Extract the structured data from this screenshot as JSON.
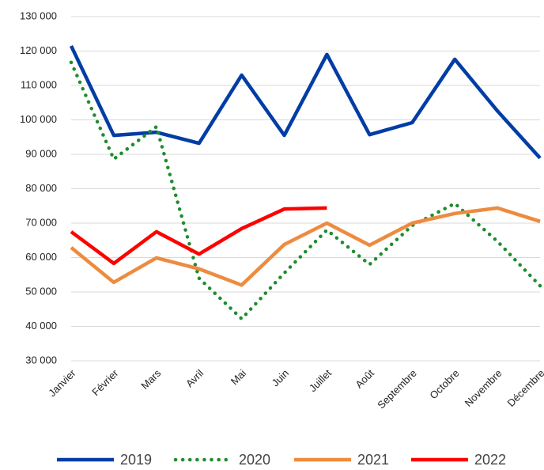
{
  "chart_data": {
    "type": "line",
    "categories": [
      "Janvier",
      "Février",
      "Mars",
      "Avril",
      "Mai",
      "Juin",
      "Juillet",
      "Août",
      "Septembre",
      "Octobre",
      "Novembre",
      "Décembre"
    ],
    "series": [
      {
        "name": "2019",
        "color": "#003da5",
        "dash": false,
        "values": [
          121500,
          95500,
          96400,
          93200,
          113000,
          95500,
          119000,
          95700,
          99200,
          117600,
          102600,
          88900
        ]
      },
      {
        "name": "2020",
        "color": "#1e8c2e",
        "dash": true,
        "values": [
          116700,
          88600,
          98000,
          54000,
          42200,
          55500,
          68000,
          58000,
          69300,
          75700,
          64700,
          51800
        ]
      },
      {
        "name": "2021",
        "color": "#ed8b3f",
        "dash": false,
        "values": [
          62900,
          52800,
          59900,
          56700,
          52000,
          63800,
          70000,
          63600,
          70000,
          72800,
          74400,
          70500
        ]
      },
      {
        "name": "2022",
        "color": "#ff0000",
        "dash": false,
        "values": [
          67500,
          58300,
          67500,
          61000,
          68400,
          74100,
          74400,
          null,
          null,
          null,
          null,
          null
        ]
      }
    ],
    "ylim": [
      30000,
      130000
    ],
    "yticks": [
      {
        "value": 30000,
        "label": "30 000"
      },
      {
        "value": 40000,
        "label": "40 000"
      },
      {
        "value": 50000,
        "label": "50 000"
      },
      {
        "value": 60000,
        "label": "60 000"
      },
      {
        "value": 70000,
        "label": "70 000"
      },
      {
        "value": 80000,
        "label": "80 000"
      },
      {
        "value": 90000,
        "label": "90 000"
      },
      {
        "value": 100000,
        "label": "100 000"
      },
      {
        "value": 110000,
        "label": "110 000"
      },
      {
        "value": 120000,
        "label": "120 000"
      },
      {
        "value": 130000,
        "label": "130 000"
      }
    ],
    "grid": true,
    "legend": "bottom"
  }
}
